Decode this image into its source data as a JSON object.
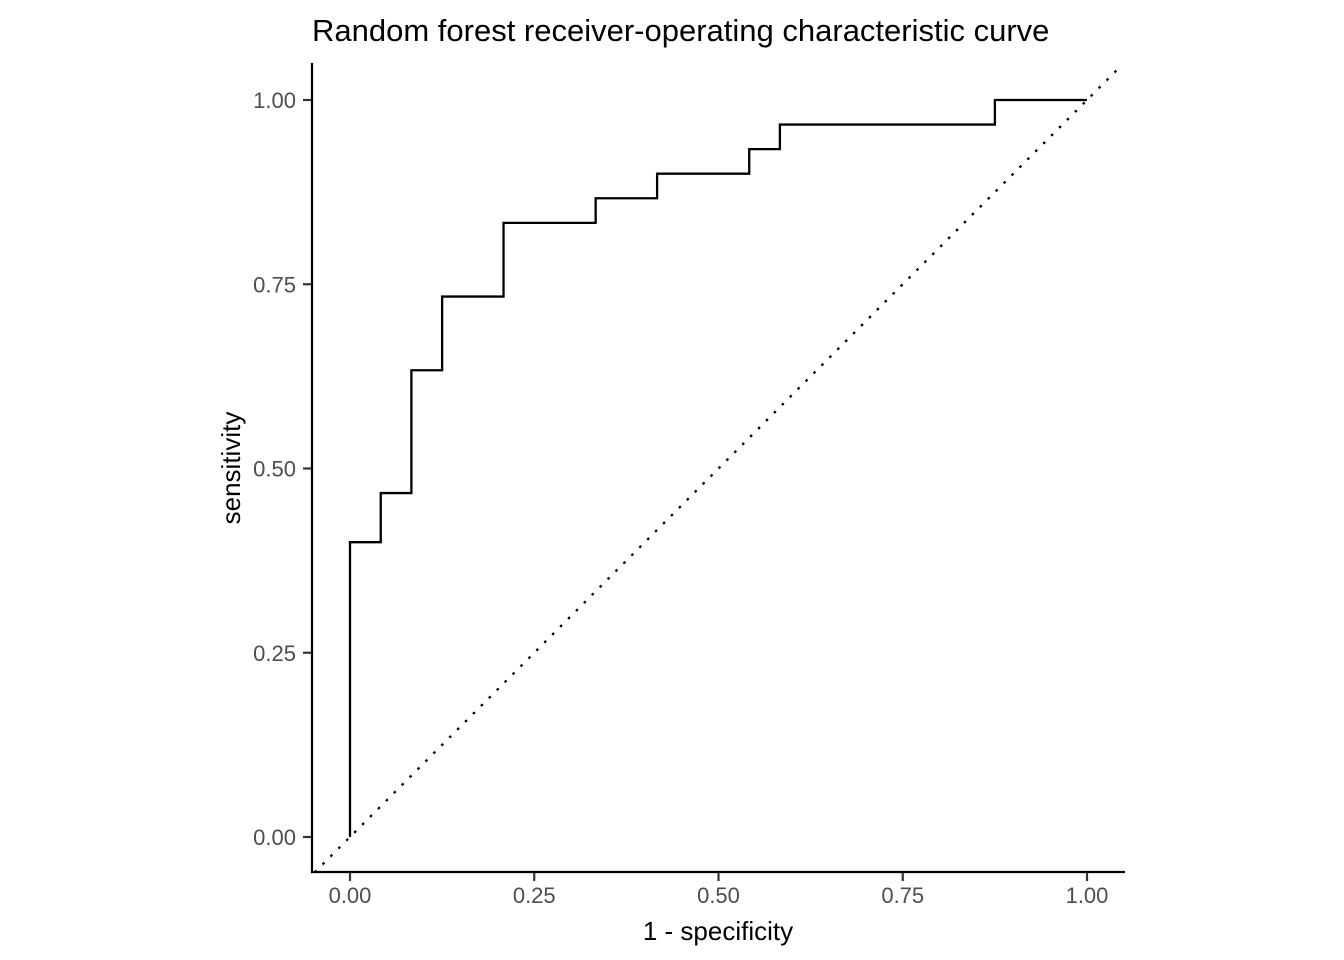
{
  "chart_data": {
    "type": "line",
    "title": "Random forest receiver-operating characteristic curve",
    "xlabel": "1 - specificity",
    "ylabel": "sensitivity",
    "xlim": [
      0,
      1
    ],
    "ylim": [
      0,
      1
    ],
    "grid": false,
    "legend": "none",
    "x_ticks": {
      "values": [
        0,
        0.25,
        0.5,
        0.75,
        1
      ],
      "labels": [
        "0.00",
        "0.25",
        "0.50",
        "0.75",
        "1.00"
      ]
    },
    "y_ticks": {
      "values": [
        0,
        0.25,
        0.5,
        0.75,
        1
      ],
      "labels": [
        "0.00",
        "0.25",
        "0.50",
        "0.75",
        "1.00"
      ]
    },
    "series": [
      {
        "name": "roc-curve",
        "type": "step",
        "color": "#000000",
        "points": [
          [
            0,
            0
          ],
          [
            0,
            0.4
          ],
          [
            0.0417,
            0.4667
          ],
          [
            0.0833,
            0.6333
          ],
          [
            0.125,
            0.7333
          ],
          [
            0.2083,
            0.8333
          ],
          [
            0.3333,
            0.8667
          ],
          [
            0.4167,
            0.9
          ],
          [
            0.5417,
            0.9333
          ],
          [
            0.5833,
            0.9667
          ],
          [
            0.875,
            1
          ],
          [
            1,
            1
          ]
        ]
      },
      {
        "name": "chance-diagonal",
        "type": "reference-line",
        "style": "dotted",
        "color": "#000000",
        "points": [
          [
            0,
            0
          ],
          [
            1,
            1
          ]
        ]
      }
    ],
    "colors": {
      "background": "#ffffff",
      "axis_line": "#000000",
      "tick_mark": "#333333",
      "tick_label": "#4d4d4d",
      "title": "#000000",
      "axis_title": "#000000"
    }
  }
}
